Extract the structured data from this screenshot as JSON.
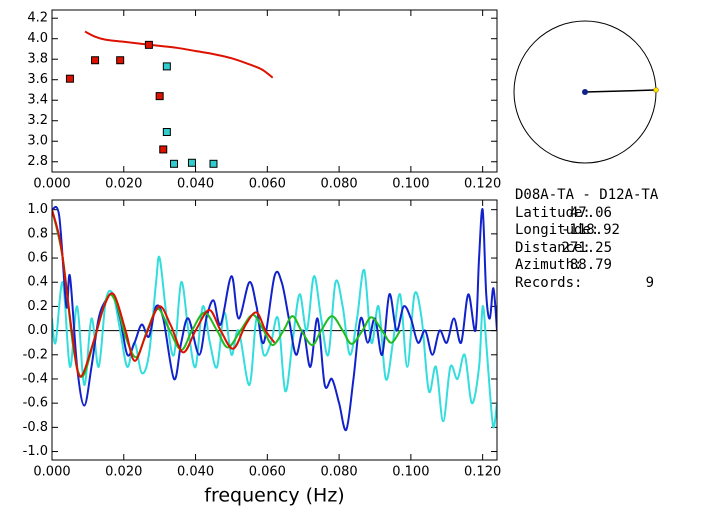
{
  "chart_data": [
    {
      "type": "scatter",
      "xlim": [
        0,
        0.124
      ],
      "ylim": [
        2.7,
        4.28
      ],
      "xticks": [
        {
          "value": 0,
          "label": "0.000"
        },
        {
          "value": 0.02,
          "label": "0.020"
        },
        {
          "value": 0.04,
          "label": "0.040"
        },
        {
          "value": 0.06,
          "label": "0.060"
        },
        {
          "value": 0.08,
          "label": "0.080"
        },
        {
          "value": 0.1,
          "label": "0.100"
        },
        {
          "value": 0.12,
          "label": "0.120"
        }
      ],
      "yticks": [
        {
          "value": 2.8,
          "label": "2.8"
        },
        {
          "value": 3,
          "label": "3.0"
        },
        {
          "value": 3.2,
          "label": "3.2"
        },
        {
          "value": 3.4,
          "label": "3.4"
        },
        {
          "value": 3.6,
          "label": "3.6"
        },
        {
          "value": 3.8,
          "label": "3.8"
        },
        {
          "value": 4,
          "label": "4.0"
        },
        {
          "value": 4.2,
          "label": "4.2"
        }
      ],
      "series": [
        {
          "style": "line",
          "color": "#dd1100",
          "x": [
            0.0092,
            0.012,
            0.015,
            0.02,
            0.025,
            0.03,
            0.035,
            0.04,
            0.045,
            0.05,
            0.055,
            0.0585,
            0.0615
          ],
          "values": [
            4.07,
            4.02,
            3.99,
            3.97,
            3.95,
            3.93,
            3.91,
            3.88,
            3.85,
            3.81,
            3.75,
            3.7,
            3.62
          ]
        },
        {
          "style": "markers",
          "color": "#dd1100",
          "x": [
            0.005,
            0.012,
            0.019,
            0.027,
            0.03,
            0.031
          ],
          "values": [
            3.61,
            3.79,
            3.79,
            3.94,
            3.44,
            2.92
          ]
        },
        {
          "style": "markers",
          "color": "#33cccc",
          "x": [
            0.032,
            0.032,
            0.034,
            0.039,
            0.045
          ],
          "values": [
            3.73,
            3.09,
            2.78,
            2.79,
            2.78
          ]
        }
      ]
    },
    {
      "type": "line",
      "xlabel": "frequency (Hz)",
      "xlim": [
        0,
        0.124
      ],
      "ylim": [
        -1.07,
        1.08
      ],
      "zero_line": true,
      "xticks": [
        {
          "value": 0,
          "label": "0.000"
        },
        {
          "value": 0.02,
          "label": "0.020"
        },
        {
          "value": 0.04,
          "label": "0.040"
        },
        {
          "value": 0.06,
          "label": "0.060"
        },
        {
          "value": 0.08,
          "label": "0.080"
        },
        {
          "value": 0.1,
          "label": "0.100"
        },
        {
          "value": 0.12,
          "label": "0.120"
        }
      ],
      "yticks": [
        {
          "value": -1,
          "label": "-1.0"
        },
        -0.8,
        -0.6,
        -0.4,
        -0.2,
        {
          "value": 0,
          "label": "0.0"
        },
        0.2,
        0.4,
        0.6,
        0.8,
        {
          "value": 1,
          "label": "1.0"
        }
      ],
      "series": [
        {
          "color": "#33dddd",
          "x": [
            0.0,
            0.001,
            0.003,
            0.005,
            0.007,
            0.009,
            0.011,
            0.013,
            0.015,
            0.017,
            0.019,
            0.021,
            0.023,
            0.025,
            0.027,
            0.029,
            0.03,
            0.032,
            0.034,
            0.036,
            0.038,
            0.04,
            0.042,
            0.044,
            0.046,
            0.048,
            0.05,
            0.052,
            0.055,
            0.057,
            0.059,
            0.061,
            0.063,
            0.065,
            0.067,
            0.069,
            0.071,
            0.073,
            0.075,
            0.077,
            0.079,
            0.081,
            0.083,
            0.085,
            0.087,
            0.089,
            0.091,
            0.093,
            0.095,
            0.097,
            0.099,
            0.101,
            0.103,
            0.105,
            0.107,
            0.109,
            0.111,
            0.113,
            0.115,
            0.117,
            0.119,
            0.12,
            0.121,
            0.122,
            0.123,
            0.124
          ],
          "values": [
            0.1,
            -0.1,
            0.4,
            -0.3,
            0.2,
            -0.45,
            0.1,
            -0.3,
            0.25,
            0.3,
            0.0,
            -0.3,
            -0.1,
            -0.35,
            -0.2,
            0.4,
            0.6,
            0.1,
            -0.2,
            0.4,
            0.0,
            -0.3,
            0.2,
            -0.1,
            -0.3,
            0.15,
            -0.2,
            0.0,
            -0.45,
            0.1,
            -0.2,
            -0.1,
            0.1,
            -0.5,
            -0.1,
            0.3,
            0.0,
            0.45,
            0.1,
            -0.2,
            0.4,
            0.2,
            -0.2,
            0.1,
            0.5,
            -0.1,
            0.2,
            -0.4,
            -0.1,
            0.3,
            -0.3,
            0.3,
            0.1,
            -0.5,
            -0.3,
            -0.75,
            -0.3,
            -0.4,
            -0.2,
            -0.6,
            -0.3,
            0.2,
            -0.1,
            -0.5,
            -0.8,
            -0.6
          ]
        },
        {
          "color": "#1122cc",
          "x": [
            0.0,
            0.002,
            0.004,
            0.005,
            0.007,
            0.009,
            0.011,
            0.013,
            0.015,
            0.017,
            0.019,
            0.021,
            0.023,
            0.025,
            0.027,
            0.029,
            0.031,
            0.034,
            0.036,
            0.038,
            0.041,
            0.043,
            0.045,
            0.047,
            0.05,
            0.052,
            0.055,
            0.057,
            0.059,
            0.062,
            0.064,
            0.066,
            0.068,
            0.07,
            0.072,
            0.074,
            0.076,
            0.078,
            0.08,
            0.082,
            0.084,
            0.086,
            0.088,
            0.09,
            0.092,
            0.094,
            0.096,
            0.098,
            0.1,
            0.102,
            0.104,
            0.106,
            0.108,
            0.11,
            0.112,
            0.114,
            0.116,
            0.118,
            0.119,
            0.12,
            0.121,
            0.122,
            0.123,
            0.124
          ],
          "values": [
            1.0,
            0.95,
            0.2,
            0.45,
            -0.3,
            -0.62,
            -0.3,
            0.1,
            0.25,
            0.3,
            0.1,
            -0.2,
            -0.1,
            0.05,
            -0.05,
            0.2,
            0.1,
            -0.4,
            -0.1,
            0.1,
            -0.2,
            0.1,
            0.25,
            0.05,
            0.45,
            0.1,
            0.4,
            0.2,
            -0.1,
            0.45,
            0.4,
            0.1,
            -0.2,
            0.0,
            -0.3,
            0.1,
            -0.45,
            -0.4,
            -0.6,
            -0.82,
            -0.4,
            0.1,
            -0.1,
            0.1,
            -0.2,
            0.3,
            0.0,
            0.2,
            0.1,
            -0.1,
            0.0,
            -0.2,
            0.0,
            -0.1,
            0.1,
            -0.1,
            0.3,
            0.0,
            0.6,
            1.0,
            0.3,
            0.1,
            0.35,
            0.0
          ]
        },
        {
          "color": "#22bb22",
          "x": [
            0.0,
            0.003,
            0.006,
            0.0085,
            0.012,
            0.0155,
            0.018,
            0.0205,
            0.0235,
            0.0265,
            0.0295,
            0.0325,
            0.036,
            0.039,
            0.0425,
            0.046,
            0.049,
            0.0525,
            0.056,
            0.059,
            0.0615,
            0.0645,
            0.067,
            0.0695,
            0.0725,
            0.075,
            0.078,
            0.081,
            0.0835,
            0.0865,
            0.089,
            0.092,
            0.0945,
            0.097
          ],
          "values": [
            1.0,
            0.6,
            -0.15,
            -0.38,
            -0.05,
            0.28,
            0.22,
            -0.05,
            -0.22,
            0.0,
            0.18,
            0.02,
            -0.16,
            0.0,
            0.15,
            0.0,
            -0.14,
            0.0,
            0.13,
            0.0,
            -0.12,
            0.0,
            0.12,
            0.0,
            -0.12,
            0.0,
            0.12,
            0.0,
            -0.11,
            0.0,
            0.11,
            0.0,
            -0.1,
            0.0
          ]
        },
        {
          "color": "#dd1100",
          "x": [
            0.0,
            0.0025,
            0.0055,
            0.0078,
            0.0115,
            0.0145,
            0.0172,
            0.0205,
            0.023,
            0.026,
            0.0298,
            0.033,
            0.0365,
            0.04,
            0.0438,
            0.047,
            0.0505,
            0.054,
            0.057,
            0.0595,
            0.062
          ],
          "values": [
            1.0,
            0.7,
            0.0,
            -0.38,
            -0.1,
            0.2,
            0.3,
            0.0,
            -0.25,
            -0.05,
            0.2,
            0.05,
            -0.18,
            0.0,
            0.17,
            0.0,
            -0.15,
            0.05,
            0.15,
            0.0,
            -0.1
          ]
        }
      ]
    }
  ],
  "info": {
    "station": "D08A-TA - D12A-TA",
    "rows": [
      {
        "label": "Latitude:",
        "value": 47.06
      },
      {
        "label": "Longitude:",
        "value": -118.92
      },
      {
        "label": "Distance:",
        "value": 271.25
      },
      {
        "label": "Azimuth:",
        "value": 88.79
      },
      {
        "label": "Records:",
        "value": 9
      }
    ]
  }
}
